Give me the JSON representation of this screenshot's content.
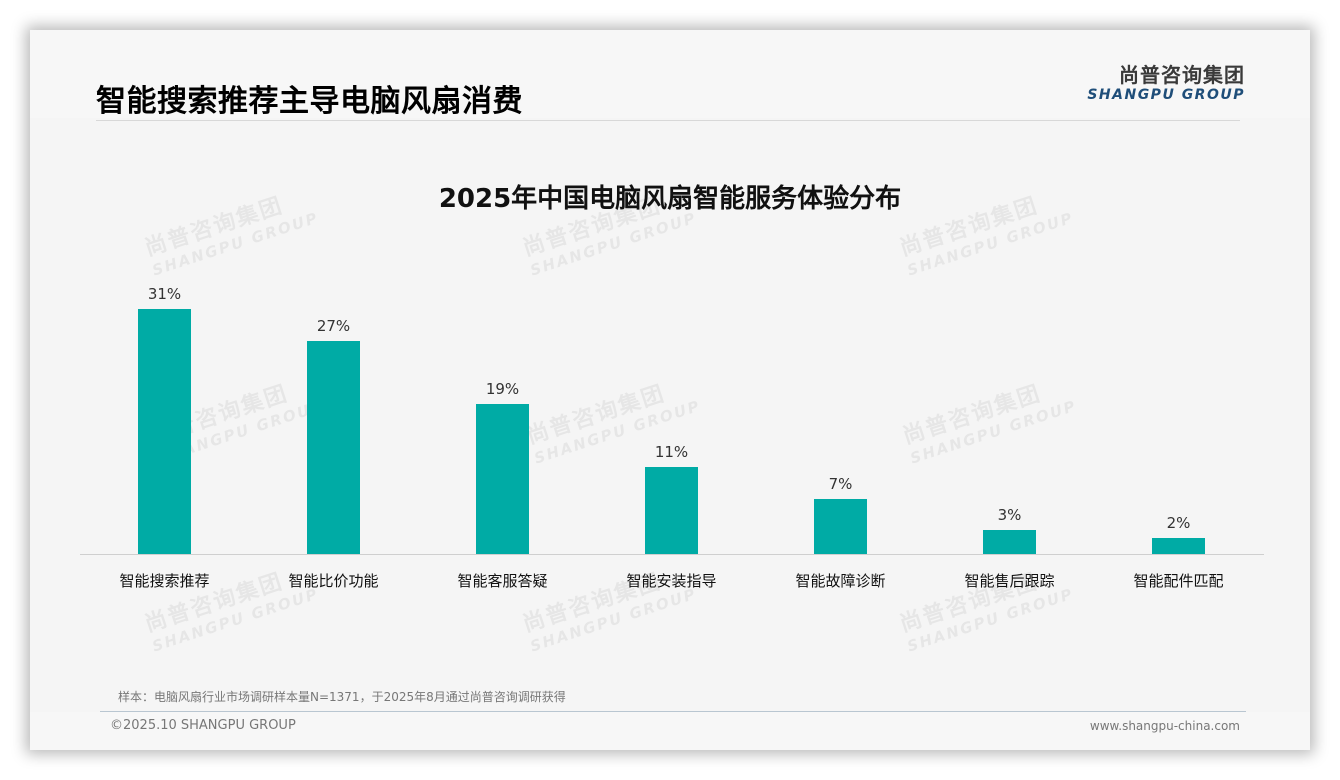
{
  "header": {
    "title": "智能搜索推荐主导电脑风扇消费",
    "logo_cn": "尚普咨询集团",
    "logo_en": "SHANGPU GROUP"
  },
  "watermark": {
    "cn": "尚普咨询集团",
    "en": "SHANGPU GROUP"
  },
  "colors": {
    "bar": "#00aba5",
    "logo_en": "#1f4e79"
  },
  "chart_data": {
    "type": "bar",
    "title": "2025年中国电脑风扇智能服务体验分布",
    "categories": [
      "智能搜索推荐",
      "智能比价功能",
      "智能客服答疑",
      "智能安装指导",
      "智能故障诊断",
      "智能售后跟踪",
      "智能配件匹配"
    ],
    "values": [
      31,
      27,
      19,
      11,
      7,
      3,
      2
    ],
    "value_labels": [
      "31%",
      "27%",
      "19%",
      "11%",
      "7%",
      "3%",
      "2%"
    ],
    "unit": "%",
    "xlabel": "",
    "ylabel": "",
    "ylim": [
      0,
      31
    ],
    "grid": false,
    "legend": "none"
  },
  "footer": {
    "note": "样本：电脑风扇行业市场调研样本量N=1371，于2025年8月通过尚普咨询调研获得",
    "copyright": "©2025.10 SHANGPU GROUP",
    "website": "www.shangpu-china.com"
  }
}
